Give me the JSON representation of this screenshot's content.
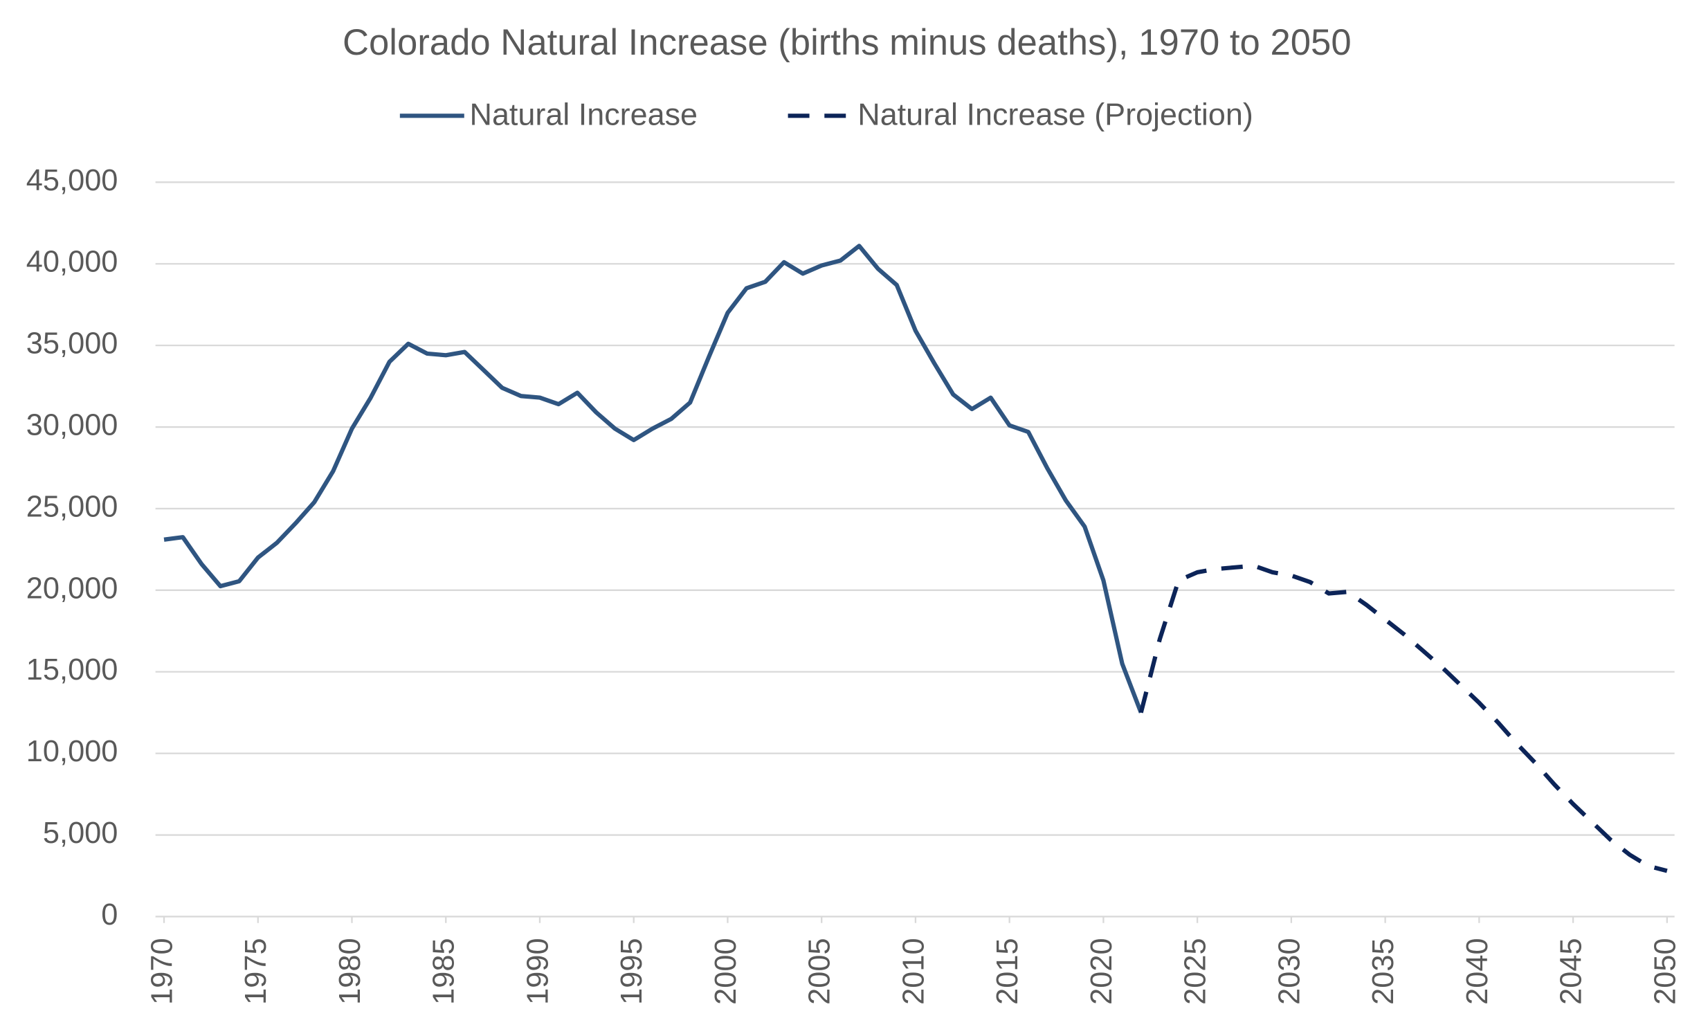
{
  "chart_data": {
    "type": "line",
    "title": "Colorado Natural Increase (births minus deaths), 1970 to 2050",
    "x": [
      1970,
      1971,
      1972,
      1973,
      1974,
      1975,
      1976,
      1977,
      1978,
      1979,
      1980,
      1981,
      1982,
      1983,
      1984,
      1985,
      1986,
      1987,
      1988,
      1989,
      1990,
      1991,
      1992,
      1993,
      1994,
      1995,
      1996,
      1997,
      1998,
      1999,
      2000,
      2001,
      2002,
      2003,
      2004,
      2005,
      2006,
      2007,
      2008,
      2009,
      2010,
      2011,
      2012,
      2013,
      2014,
      2015,
      2016,
      2017,
      2018,
      2019,
      2020,
      2021,
      2022,
      2023,
      2024,
      2025,
      2026,
      2027,
      2028,
      2029,
      2030,
      2031,
      2032,
      2033,
      2034,
      2035,
      2036,
      2037,
      2038,
      2039,
      2040,
      2041,
      2042,
      2043,
      2044,
      2045,
      2046,
      2047,
      2048,
      2049,
      2050
    ],
    "series": [
      {
        "name": "Natural Increase",
        "color": "#2f5581",
        "dash": false,
        "values": [
          23100,
          23250,
          21600,
          20250,
          20550,
          22000,
          22900,
          24100,
          25400,
          27300,
          29900,
          31800,
          34000,
          35100,
          34500,
          34400,
          34600,
          33500,
          32400,
          31900,
          31800,
          31400,
          32100,
          30900,
          29900,
          29200,
          29900,
          30500,
          31500,
          34300,
          37000,
          38500,
          38900,
          40100,
          39400,
          39900,
          40200,
          41100,
          39700,
          38700,
          35900,
          33900,
          32000,
          31100,
          31800,
          30100,
          29700,
          27500,
          25500,
          23900,
          20600,
          15500,
          12500,
          null,
          null,
          null,
          null,
          null,
          null,
          null,
          null,
          null,
          null,
          null,
          null,
          null,
          null,
          null,
          null,
          null,
          null,
          null,
          null,
          null,
          null,
          null,
          null,
          null,
          null,
          null,
          null
        ]
      },
      {
        "name": "Natural Increase (Projection)",
        "color": "#0c2458",
        "dash": true,
        "values": [
          null,
          null,
          null,
          null,
          null,
          null,
          null,
          null,
          null,
          null,
          null,
          null,
          null,
          null,
          null,
          null,
          null,
          null,
          null,
          null,
          null,
          null,
          null,
          null,
          null,
          null,
          null,
          null,
          null,
          null,
          null,
          null,
          null,
          null,
          null,
          null,
          null,
          null,
          null,
          null,
          null,
          null,
          null,
          null,
          null,
          null,
          null,
          null,
          null,
          null,
          null,
          null,
          12500,
          17000,
          20600,
          21100,
          21300,
          21400,
          21500,
          21100,
          20900,
          20500,
          19800,
          19900,
          19100,
          18200,
          17300,
          16300,
          15300,
          14200,
          13100,
          11900,
          10600,
          9400,
          8100,
          6900,
          5800,
          4700,
          3800,
          3100,
          2800
        ]
      }
    ],
    "xlim": [
      1970,
      2050
    ],
    "xticks": [
      1970,
      1975,
      1980,
      1985,
      1990,
      1995,
      2000,
      2005,
      2010,
      2015,
      2020,
      2025,
      2030,
      2035,
      2040,
      2045,
      2050
    ],
    "ylim": [
      0,
      45000
    ],
    "yticks": [
      0,
      {
        "value": 5000,
        "label": "5,000"
      },
      {
        "value": 10000,
        "label": "10,000"
      },
      {
        "value": 15000,
        "label": "15,000"
      },
      {
        "value": 20000,
        "label": "20,000"
      },
      {
        "value": 25000,
        "label": "25,000"
      },
      {
        "value": 30000,
        "label": "30,000"
      },
      {
        "value": 35000,
        "label": "35,000"
      },
      {
        "value": 40000,
        "label": "40,000"
      },
      {
        "value": 45000,
        "label": "45,000"
      }
    ],
    "grid": true,
    "legend": "top"
  }
}
